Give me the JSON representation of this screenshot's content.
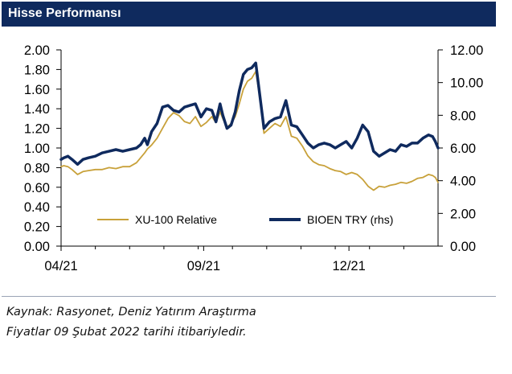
{
  "header": {
    "title": "Hisse Performansı"
  },
  "footer": {
    "source": "Kaynak: Rasyonet, Deniz Yatırım Araştırma",
    "note": "Fiyatlar 09 Şubat 2022 tarihi itibariyledir."
  },
  "colors": {
    "header_bg": "#0f2a5e",
    "xu100": "#c8a13a",
    "bioen": "#0f2a5e"
  },
  "chart_data": {
    "type": "line",
    "title": "Hisse Performansı",
    "x_tick_labels": [
      "04/21",
      "09/21",
      "12/21"
    ],
    "y_left": {
      "ticks": [
        "0.00",
        "0.20",
        "0.40",
        "0.60",
        "0.80",
        "1.00",
        "1.20",
        "1.40",
        "1.60",
        "1.80",
        "2.00"
      ],
      "range": [
        0,
        2
      ]
    },
    "y_right": {
      "ticks": [
        "0.00",
        "2.00",
        "4.00",
        "6.00",
        "8.00",
        "10.00",
        "12.00"
      ],
      "range": [
        0,
        12
      ]
    },
    "grid": false,
    "legend_position": "bottom-inside",
    "series": [
      {
        "name": "XU-100 Relative",
        "axis": "left",
        "color": "#c8a13a",
        "t": [
          0,
          2,
          5,
          8,
          12,
          16,
          20,
          25,
          30,
          35,
          40,
          45,
          50,
          55,
          58,
          61,
          63,
          66,
          70,
          74,
          78,
          82,
          86,
          90,
          94,
          98,
          102,
          106,
          110,
          113,
          116,
          118,
          121,
          124,
          127,
          130,
          133,
          136,
          139,
          142,
          145,
          148,
          152,
          156,
          160,
          164,
          168,
          172,
          176,
          180,
          184,
          188,
          192,
          196,
          200,
          204,
          208,
          212,
          216,
          220,
          224,
          228,
          232,
          236,
          240,
          244,
          248,
          252,
          256,
          260,
          264,
          268,
          271,
          273,
          275
        ],
        "values": [
          0.81,
          0.82,
          0.81,
          0.78,
          0.73,
          0.76,
          0.77,
          0.78,
          0.78,
          0.8,
          0.79,
          0.81,
          0.81,
          0.85,
          0.9,
          0.95,
          0.99,
          1.03,
          1.1,
          1.2,
          1.3,
          1.36,
          1.33,
          1.27,
          1.25,
          1.32,
          1.22,
          1.26,
          1.32,
          1.26,
          1.37,
          1.3,
          1.21,
          1.25,
          1.32,
          1.45,
          1.6,
          1.68,
          1.71,
          1.78,
          1.52,
          1.15,
          1.2,
          1.25,
          1.22,
          1.32,
          1.12,
          1.1,
          1.02,
          0.92,
          0.86,
          0.83,
          0.82,
          0.79,
          0.77,
          0.76,
          0.73,
          0.75,
          0.73,
          0.68,
          0.61,
          0.57,
          0.61,
          0.6,
          0.62,
          0.63,
          0.65,
          0.64,
          0.66,
          0.69,
          0.7,
          0.73,
          0.72,
          0.7,
          0.65
        ]
      },
      {
        "name": "BIOEN TRY (rhs)",
        "axis": "right",
        "color": "#0f2a5e",
        "t": [
          0,
          2,
          5,
          8,
          12,
          16,
          20,
          25,
          30,
          35,
          40,
          45,
          50,
          55,
          58,
          61,
          63,
          66,
          70,
          74,
          78,
          82,
          86,
          90,
          94,
          98,
          102,
          106,
          110,
          113,
          116,
          118,
          121,
          124,
          127,
          130,
          133,
          136,
          139,
          142,
          145,
          148,
          152,
          156,
          160,
          164,
          168,
          172,
          176,
          180,
          184,
          188,
          192,
          196,
          200,
          204,
          208,
          212,
          216,
          220,
          224,
          228,
          232,
          236,
          240,
          244,
          248,
          252,
          256,
          260,
          264,
          268,
          271,
          273,
          275
        ],
        "values": [
          5.3,
          5.4,
          5.5,
          5.3,
          5.0,
          5.3,
          5.4,
          5.5,
          5.7,
          5.8,
          5.9,
          5.8,
          5.9,
          6.0,
          6.2,
          6.6,
          6.2,
          7.0,
          7.5,
          8.5,
          8.6,
          8.3,
          8.2,
          8.5,
          8.6,
          8.7,
          7.9,
          8.4,
          8.3,
          7.6,
          8.7,
          8.0,
          7.2,
          7.4,
          8.2,
          9.5,
          10.5,
          10.8,
          10.9,
          11.2,
          9.2,
          7.2,
          7.6,
          7.8,
          7.9,
          8.9,
          7.4,
          7.3,
          6.8,
          6.3,
          6.0,
          6.2,
          6.3,
          6.2,
          6.0,
          6.2,
          6.4,
          6.0,
          6.6,
          7.4,
          7.0,
          5.8,
          5.5,
          5.7,
          5.9,
          5.8,
          6.2,
          6.1,
          6.3,
          6.3,
          6.6,
          6.8,
          6.7,
          6.4,
          6.0
        ]
      }
    ]
  }
}
